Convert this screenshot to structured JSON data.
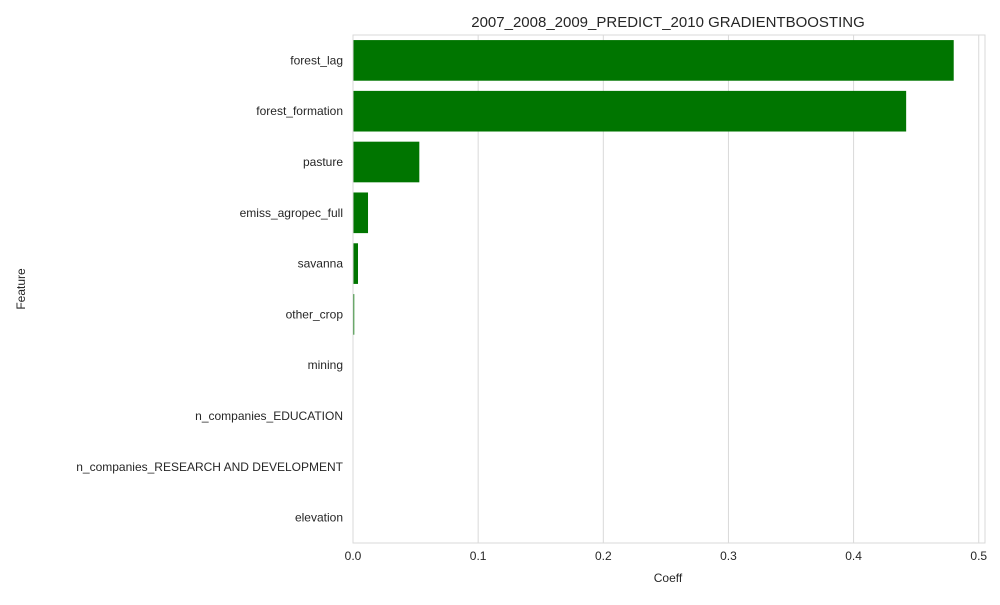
{
  "chart_data": {
    "type": "bar",
    "orientation": "horizontal",
    "title": "2007_2008_2009_PREDICT_2010 GRADIENTBOOSTING",
    "xlabel": "Coeff",
    "ylabel": "Feature",
    "xlim": [
      0,
      0.505
    ],
    "xticks": [
      0.0,
      0.1,
      0.2,
      0.3,
      0.4,
      0.5
    ],
    "xtick_labels": [
      "0.0",
      "0.1",
      "0.2",
      "0.3",
      "0.4",
      "0.5"
    ],
    "grid": true,
    "bar_color": "#007500",
    "categories": [
      "forest_lag",
      "forest_formation",
      "pasture",
      "emiss_agropec_full",
      "savanna",
      "other_crop",
      "mining",
      "n_companies_EDUCATION",
      "n_companies_RESEARCH AND DEVELOPMENT",
      "elevation"
    ],
    "values": [
      0.48,
      0.442,
      0.053,
      0.012,
      0.004,
      0.001,
      0.0,
      0.0,
      0.0,
      0.0
    ]
  }
}
